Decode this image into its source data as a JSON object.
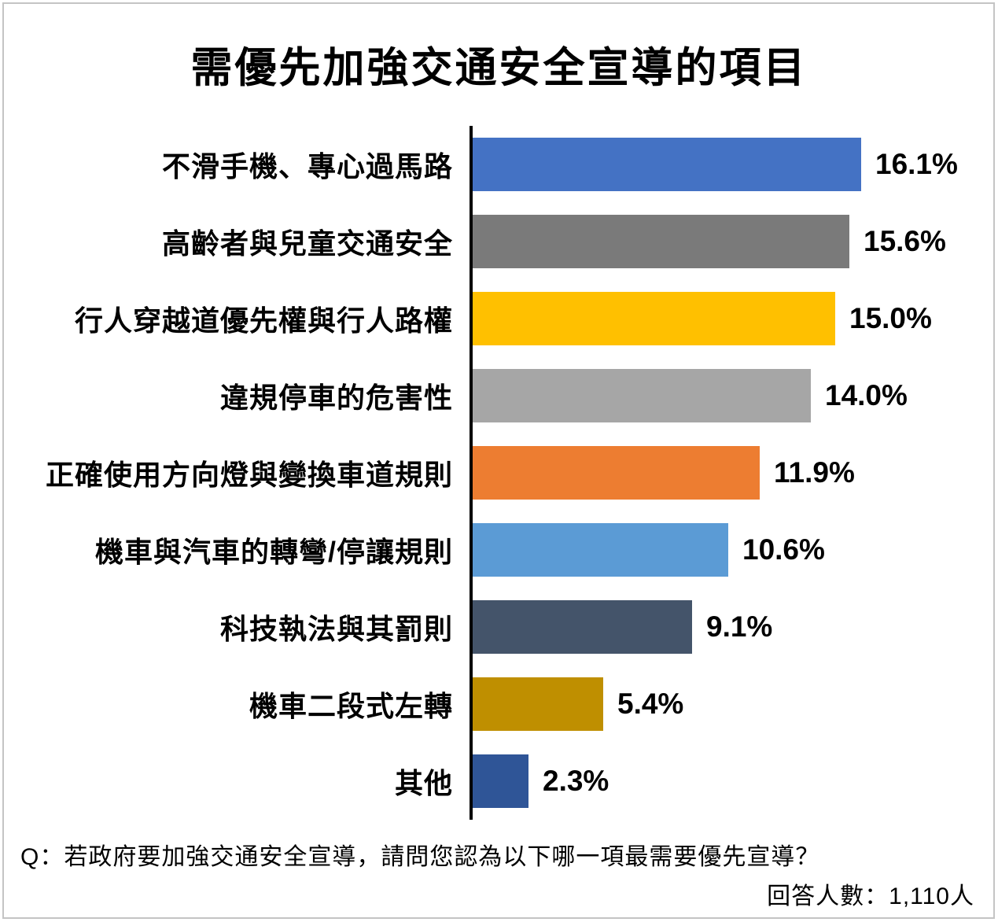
{
  "title": "需優先加強交通安全宣導的項目",
  "chart_data": {
    "type": "bar",
    "orientation": "horizontal",
    "title": "需優先加強交通安全宣導的項目",
    "categories": [
      "不滑手機、專心過馬路",
      "高齡者與兒童交通安全",
      "行人穿越道優先權與行人路權",
      "違規停車的危害性",
      "正確使用方向燈與變換車道規則",
      "機車與汽車的轉彎/停讓規則",
      "科技執法與其罰則",
      "機車二段式左轉",
      "其他"
    ],
    "values": [
      16.1,
      15.6,
      15.0,
      14.0,
      11.9,
      10.6,
      9.1,
      5.4,
      2.3
    ],
    "value_labels": [
      "16.1%",
      "15.6%",
      "15.0%",
      "14.0%",
      "11.9%",
      "10.6%",
      "9.1%",
      "5.4%",
      "2.3%"
    ],
    "bar_colors": [
      "#4472C4",
      "#7A7A7A",
      "#FFC000",
      "#A6A6A6",
      "#ED7D31",
      "#5B9BD5",
      "#44546A",
      "#BF8F00",
      "#2F5597"
    ],
    "xlim": [
      0,
      17
    ],
    "xlabel": "",
    "ylabel": "",
    "grid": false,
    "legend": false,
    "axis_color": "#000000",
    "value_label_position": "outside-end"
  },
  "footer": {
    "question": "Q：若政府要加強交通安全宣導，請問您認為以下哪一項最需要優先宣導？",
    "respondents": "回答人數：1,110人"
  },
  "frame": {
    "border_color": "#c4c4c4",
    "background": "#ffffff"
  }
}
